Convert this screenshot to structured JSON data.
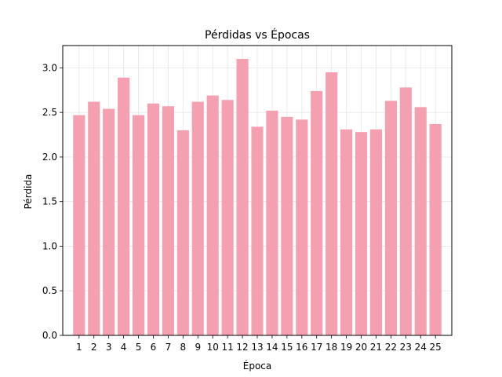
{
  "chart_data": {
    "type": "bar",
    "title": "Pérdidas vs Épocas",
    "xlabel": "Época",
    "ylabel": "Pérdida",
    "categories": [
      "1",
      "2",
      "3",
      "4",
      "5",
      "6",
      "7",
      "8",
      "9",
      "10",
      "11",
      "12",
      "13",
      "14",
      "15",
      "16",
      "17",
      "18",
      "19",
      "20",
      "21",
      "22",
      "23",
      "24",
      "25"
    ],
    "values": [
      2.47,
      2.62,
      2.54,
      2.89,
      2.47,
      2.6,
      2.57,
      2.3,
      2.62,
      2.69,
      2.64,
      3.1,
      2.34,
      2.52,
      2.45,
      2.42,
      2.74,
      2.95,
      2.31,
      2.28,
      2.31,
      2.63,
      2.78,
      2.56,
      2.37
    ],
    "ylim": [
      0,
      3.25
    ],
    "yticks": [
      0.0,
      0.5,
      1.0,
      1.5,
      2.0,
      2.5,
      3.0
    ],
    "ytick_labels": [
      "0.0",
      "0.5",
      "1.0",
      "1.5",
      "2.0",
      "2.5",
      "3.0"
    ],
    "grid": true,
    "bar_color": "#f4a0b0"
  }
}
